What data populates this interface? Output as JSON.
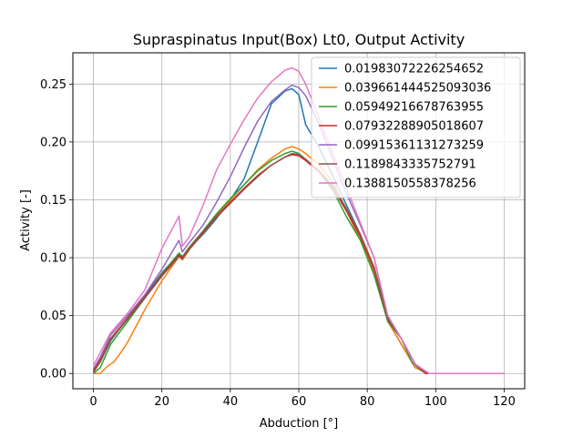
{
  "chart_data": {
    "type": "line",
    "title": "Supraspinatus Input(Box) Lt0, Output Activity",
    "xlabel": "Abduction [°]",
    "ylabel": "Activity [-]",
    "xlim": [
      -6,
      126
    ],
    "ylim": [
      -0.0132,
      0.277
    ],
    "xticks": [
      0,
      20,
      40,
      60,
      80,
      100,
      120
    ],
    "yticks": [
      0.0,
      0.05,
      0.1,
      0.15,
      0.2,
      0.25
    ],
    "ytick_labels": [
      "0.00",
      "0.05",
      "0.10",
      "0.15",
      "0.20",
      "0.25"
    ],
    "grid": true,
    "legend_position": "top-right",
    "series": [
      {
        "name": "0.01983072226254652",
        "color": "#1f77b4",
        "x": [
          0,
          2,
          5,
          10,
          15,
          20,
          25,
          26,
          28,
          32,
          36,
          40,
          44,
          48,
          52,
          56,
          58,
          60,
          62,
          66,
          70,
          74,
          78,
          82,
          86,
          90,
          94,
          98,
          100,
          110,
          120
        ],
        "y": [
          0.003,
          0.01,
          0.028,
          0.048,
          0.067,
          0.087,
          0.103,
          0.1,
          0.108,
          0.12,
          0.134,
          0.15,
          0.168,
          0.2,
          0.233,
          0.244,
          0.246,
          0.241,
          0.215,
          0.195,
          0.17,
          0.145,
          0.12,
          0.09,
          0.045,
          0.025,
          0.005,
          0.0,
          0.0,
          0.0,
          0.0
        ]
      },
      {
        "name": "0.039661444525093036",
        "color": "#ff7f0e",
        "x": [
          0,
          2,
          4,
          6,
          8,
          10,
          15,
          20,
          25,
          26,
          28,
          32,
          36,
          40,
          44,
          48,
          52,
          56,
          58,
          60,
          62,
          66,
          70,
          74,
          78,
          82,
          86,
          90,
          94,
          98,
          100,
          110,
          120
        ],
        "y": [
          0.0,
          0.0,
          0.006,
          0.01,
          0.018,
          0.027,
          0.055,
          0.08,
          0.101,
          0.098,
          0.107,
          0.121,
          0.136,
          0.15,
          0.163,
          0.176,
          0.186,
          0.194,
          0.196,
          0.194,
          0.19,
          0.18,
          0.165,
          0.14,
          0.115,
          0.088,
          0.045,
          0.025,
          0.005,
          0.0,
          0.0,
          0.0,
          0.0
        ]
      },
      {
        "name": "0.05949216678763955",
        "color": "#2ca02c",
        "x": [
          0,
          2,
          5,
          10,
          15,
          20,
          25,
          26,
          28,
          32,
          36,
          40,
          44,
          48,
          52,
          56,
          58,
          60,
          62,
          66,
          70,
          74,
          78,
          82,
          86,
          90,
          93,
          96,
          98,
          100,
          110,
          120
        ],
        "y": [
          0.0,
          0.005,
          0.025,
          0.045,
          0.065,
          0.086,
          0.104,
          0.101,
          0.109,
          0.123,
          0.138,
          0.151,
          0.163,
          0.175,
          0.184,
          0.19,
          0.192,
          0.19,
          0.185,
          0.174,
          0.158,
          0.135,
          0.115,
          0.085,
          0.045,
          0.03,
          0.01,
          0.002,
          0.0,
          0.0,
          0.0,
          0.0
        ]
      },
      {
        "name": "0.07932288905018607",
        "color": "#d62728",
        "x": [
          0,
          2,
          5,
          10,
          15,
          20,
          25,
          26,
          28,
          32,
          36,
          40,
          44,
          48,
          52,
          56,
          58,
          60,
          62,
          66,
          70,
          74,
          78,
          82,
          86,
          90,
          94,
          97,
          100,
          110,
          120
        ],
        "y": [
          0.002,
          0.012,
          0.03,
          0.048,
          0.066,
          0.085,
          0.102,
          0.1,
          0.108,
          0.122,
          0.136,
          0.148,
          0.16,
          0.171,
          0.18,
          0.187,
          0.189,
          0.188,
          0.184,
          0.174,
          0.16,
          0.14,
          0.118,
          0.09,
          0.047,
          0.03,
          0.008,
          0.0,
          0.0,
          0.0,
          0.0
        ]
      },
      {
        "name": "0.09915361131273259",
        "color": "#9467bd",
        "x": [
          0,
          2,
          5,
          10,
          15,
          20,
          25,
          26,
          28,
          32,
          36,
          40,
          44,
          48,
          52,
          56,
          58,
          60,
          62,
          66,
          70,
          74,
          78,
          82,
          86,
          90,
          94,
          98,
          100,
          110,
          120
        ],
        "y": [
          0.004,
          0.014,
          0.033,
          0.05,
          0.068,
          0.09,
          0.115,
          0.105,
          0.113,
          0.128,
          0.148,
          0.17,
          0.195,
          0.218,
          0.235,
          0.245,
          0.249,
          0.247,
          0.24,
          0.215,
          0.185,
          0.155,
          0.128,
          0.1,
          0.048,
          0.03,
          0.008,
          0.0,
          0.0,
          0.0,
          0.0
        ]
      },
      {
        "name": "0.1189843335752791",
        "color": "#8c564b",
        "x": [
          0,
          2,
          5,
          10,
          15,
          20,
          25,
          26,
          28,
          32,
          36,
          40,
          44,
          48,
          52,
          56,
          58,
          60,
          62,
          66,
          70,
          74,
          78,
          82,
          86,
          90,
          94,
          98,
          100,
          110,
          120
        ],
        "y": [
          0.001,
          0.01,
          0.029,
          0.047,
          0.065,
          0.084,
          0.101,
          0.099,
          0.107,
          0.121,
          0.135,
          0.147,
          0.159,
          0.17,
          0.18,
          0.187,
          0.19,
          0.189,
          0.185,
          0.175,
          0.162,
          0.142,
          0.12,
          0.092,
          0.048,
          0.03,
          0.008,
          0.0,
          0.0,
          0.0,
          0.0
        ]
      },
      {
        "name": "0.1388150558378256",
        "color": "#e377c2",
        "x": [
          0,
          2,
          5,
          10,
          15,
          20,
          25,
          26,
          28,
          32,
          36,
          40,
          44,
          48,
          52,
          56,
          58,
          60,
          62,
          66,
          70,
          74,
          78,
          82,
          86,
          90,
          94,
          98,
          100,
          110,
          120
        ],
        "y": [
          0.007,
          0.018,
          0.035,
          0.052,
          0.072,
          0.108,
          0.136,
          0.11,
          0.118,
          0.145,
          0.176,
          0.198,
          0.219,
          0.238,
          0.252,
          0.262,
          0.264,
          0.261,
          0.25,
          0.22,
          0.19,
          0.16,
          0.13,
          0.1,
          0.05,
          0.03,
          0.008,
          0.0,
          0.0,
          0.0,
          0.0
        ]
      }
    ]
  }
}
